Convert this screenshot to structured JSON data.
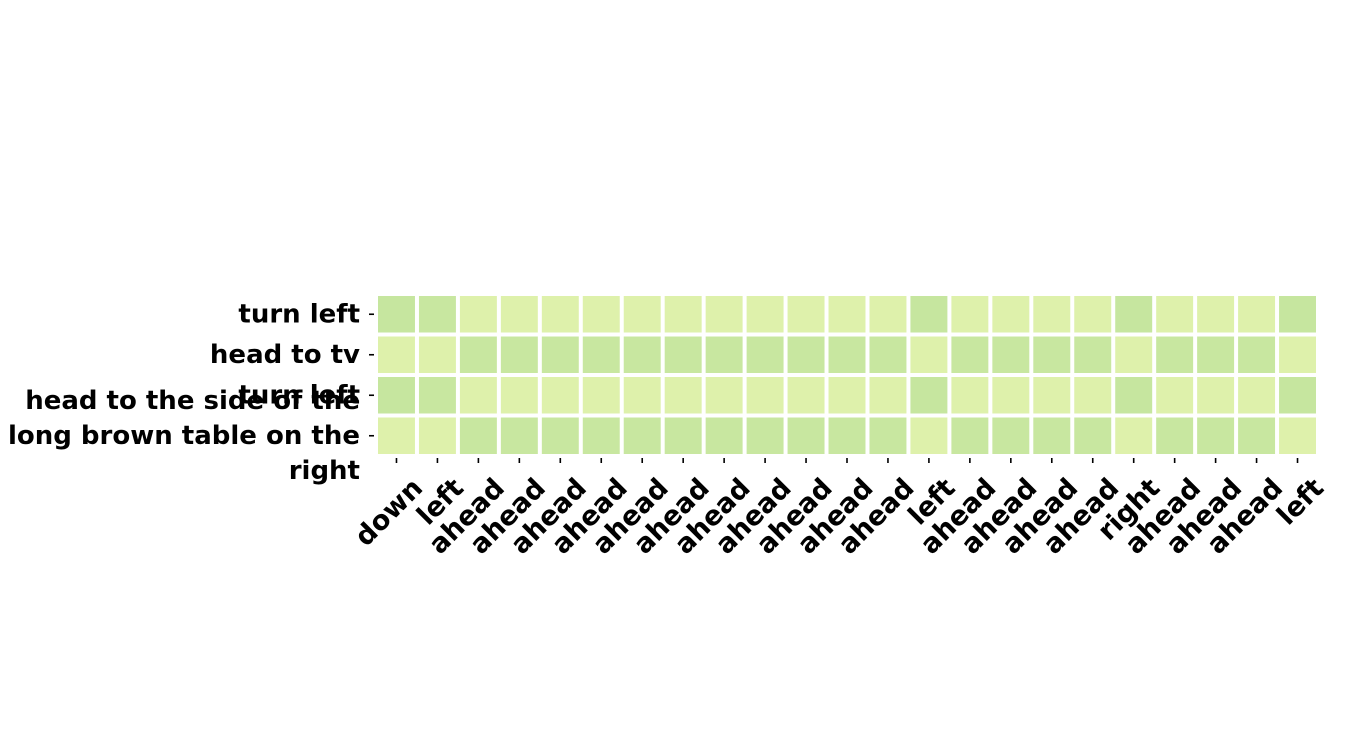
{
  "chart_data": {
    "type": "heatmap",
    "title": "",
    "xlabel": "",
    "ylabel": "",
    "rows": [
      [
        "turn left"
      ],
      [
        "head to tv"
      ],
      [
        "turn left"
      ],
      [
        "head to the side of the",
        "long brown table on the",
        "right"
      ]
    ],
    "columns": [
      "down",
      "left",
      "ahead",
      "ahead",
      "ahead",
      "ahead",
      "ahead",
      "ahead",
      "ahead",
      "ahead",
      "ahead",
      "ahead",
      "ahead",
      "left",
      "ahead",
      "ahead",
      "ahead",
      "ahead",
      "right",
      "ahead",
      "ahead",
      "ahead",
      "left"
    ],
    "values": [
      [
        0.6,
        0.58,
        0.34,
        0.34,
        0.34,
        0.34,
        0.34,
        0.34,
        0.34,
        0.34,
        0.34,
        0.34,
        0.34,
        0.6,
        0.34,
        0.34,
        0.34,
        0.34,
        0.6,
        0.34,
        0.34,
        0.34,
        0.6
      ],
      [
        0.34,
        0.34,
        0.58,
        0.58,
        0.58,
        0.58,
        0.58,
        0.58,
        0.58,
        0.58,
        0.58,
        0.58,
        0.58,
        0.34,
        0.58,
        0.58,
        0.58,
        0.58,
        0.34,
        0.58,
        0.58,
        0.58,
        0.34
      ],
      [
        0.6,
        0.58,
        0.34,
        0.34,
        0.34,
        0.34,
        0.34,
        0.34,
        0.34,
        0.34,
        0.34,
        0.34,
        0.34,
        0.6,
        0.34,
        0.34,
        0.34,
        0.34,
        0.6,
        0.34,
        0.34,
        0.34,
        0.6
      ],
      [
        0.34,
        0.34,
        0.58,
        0.58,
        0.58,
        0.58,
        0.58,
        0.58,
        0.58,
        0.58,
        0.58,
        0.58,
        0.58,
        0.34,
        0.58,
        0.58,
        0.58,
        0.58,
        0.34,
        0.58,
        0.58,
        0.58,
        0.34
      ]
    ],
    "colormap": {
      "low": "#eaf7b1",
      "high": "#c2e49d"
    },
    "colorbar": false,
    "grid": false,
    "legend": "none"
  }
}
